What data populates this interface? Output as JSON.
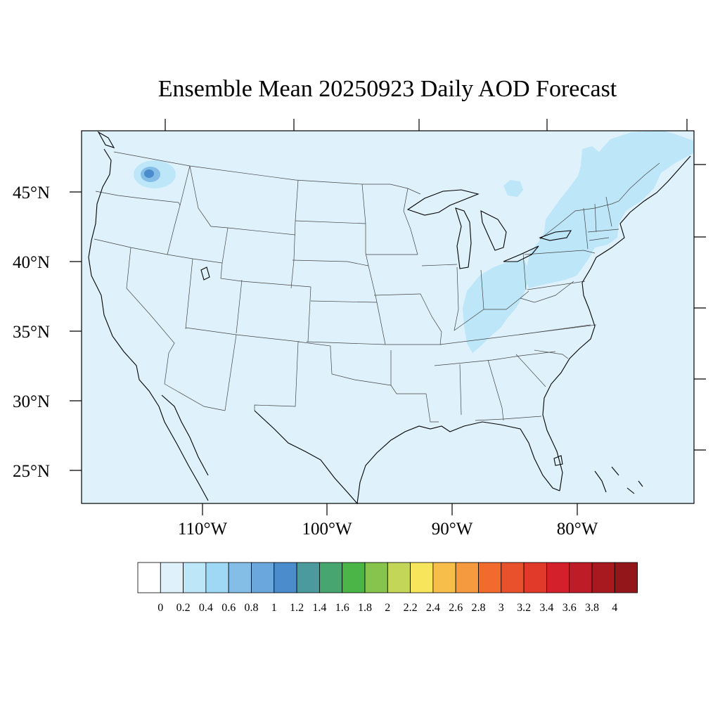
{
  "title": "Ensemble Mean 20250923 Daily AOD Forecast",
  "map": {
    "background_color": "#dff2fb",
    "lat_labels": [
      "45°N",
      "40°N",
      "35°N",
      "30°N",
      "25°N"
    ],
    "lon_labels": [
      "110°W",
      "100°W",
      "90°W",
      "80°W"
    ]
  },
  "aod_features": [
    {
      "name": "washington-smoke-plume",
      "level": 1.0
    },
    {
      "name": "washington-plume-halo",
      "level": 0.4
    },
    {
      "name": "northeast-haze",
      "level": 0.4
    },
    {
      "name": "ohio-valley-haze",
      "level": 0.4
    }
  ],
  "colorbar": {
    "labels": [
      "0",
      "0.2",
      "0.4",
      "0.6",
      "0.8",
      "1",
      "1.2",
      "1.4",
      "1.6",
      "1.8",
      "2",
      "2.2",
      "2.4",
      "2.6",
      "2.8",
      "3",
      "3.2",
      "3.4",
      "3.6",
      "3.8",
      "4"
    ],
    "colors": [
      "#ffffff",
      "#dff2fb",
      "#bde6f8",
      "#9fd8f5",
      "#84bde6",
      "#69a7dc",
      "#4a8ccc",
      "#4a9a9e",
      "#47a670",
      "#4cb548",
      "#86c44e",
      "#c3d658",
      "#f7e65c",
      "#f8be4a",
      "#f59a3e",
      "#f26a2e",
      "#e9502c",
      "#e23a2a",
      "#d3202a",
      "#be1c26",
      "#a8191f",
      "#93161b"
    ]
  }
}
